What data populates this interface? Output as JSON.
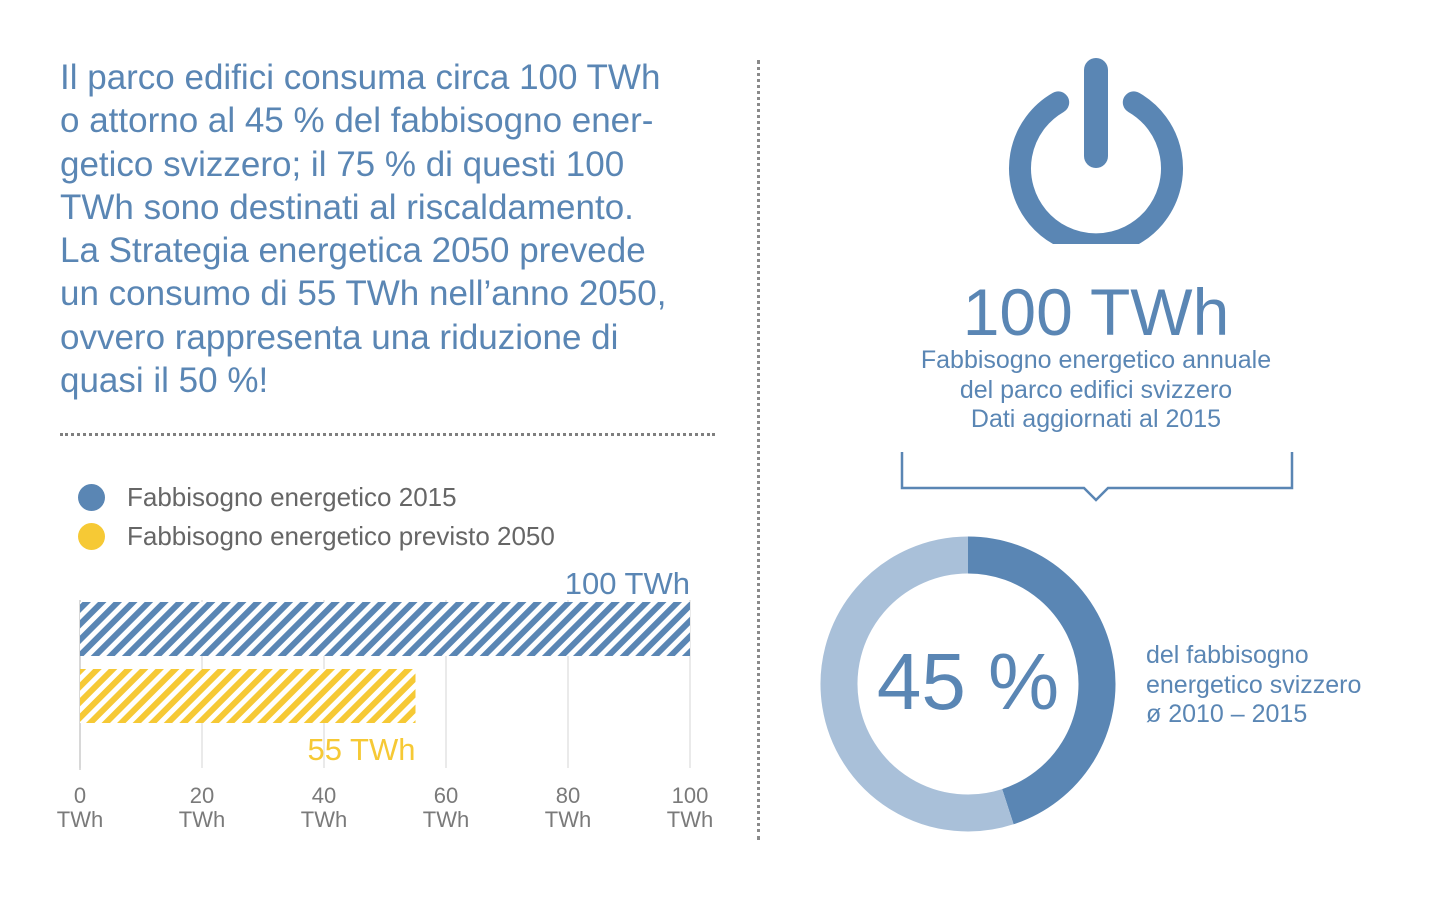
{
  "intro": {
    "lines": [
      "Il parco edifici consuma circa 100 TWh",
      "o attorno al 45 % del fabbisogno ener-",
      "getico svizzero; il 75 % di questi 100",
      "TWh sono destinati al riscaldamento.",
      "La Strategia energetica 2050 prevede",
      "un consumo di 55 TWh nell’anno 2050,",
      "ovvero rappresenta una riduzione di",
      "quasi il 50 %!"
    ]
  },
  "colors": {
    "blue": "#5a86b4",
    "yellow": "#f6c935",
    "light_blue": "#a9c0d9",
    "gray_text": "#666666",
    "grid": "#e3e3e3"
  },
  "chart_data": [
    {
      "type": "bar",
      "orientation": "horizontal",
      "series": [
        {
          "name": "Fabbisogno energetico 2015",
          "value": 100,
          "label": "100 TWh",
          "color": "#5a86b4",
          "pattern": "hatched"
        },
        {
          "name": "Fabbisogno energetico previsto 2050",
          "value": 55,
          "label": "55 TWh",
          "color": "#f6c935",
          "pattern": "hatched"
        }
      ],
      "xlim": [
        0,
        100
      ],
      "xticks": [
        {
          "value": 0,
          "label": "0",
          "unit": "TWh"
        },
        {
          "value": 20,
          "label": "20",
          "unit": "TWh"
        },
        {
          "value": 40,
          "label": "40",
          "unit": "TWh"
        },
        {
          "value": 60,
          "label": "60",
          "unit": "TWh"
        },
        {
          "value": 80,
          "label": "80",
          "unit": "TWh"
        },
        {
          "value": 100,
          "label": "100",
          "unit": "TWh"
        }
      ],
      "grid": true,
      "legend": "top-left"
    },
    {
      "type": "pie",
      "style": "donut",
      "values": [
        45,
        55
      ],
      "colors": [
        "#5a86b4",
        "#a9c0d9"
      ],
      "center_label": "45 %"
    }
  ],
  "right": {
    "value": "100 TWh",
    "caption_lines": [
      "Fabbisogno energetico annuale",
      "del parco edifici svizzero",
      "Dati aggiornati al 2015"
    ],
    "donut_caption_lines": [
      "del fabbisogno",
      "energetico svizzero",
      "ø 2010 – 2015"
    ],
    "icon": "power-icon"
  }
}
